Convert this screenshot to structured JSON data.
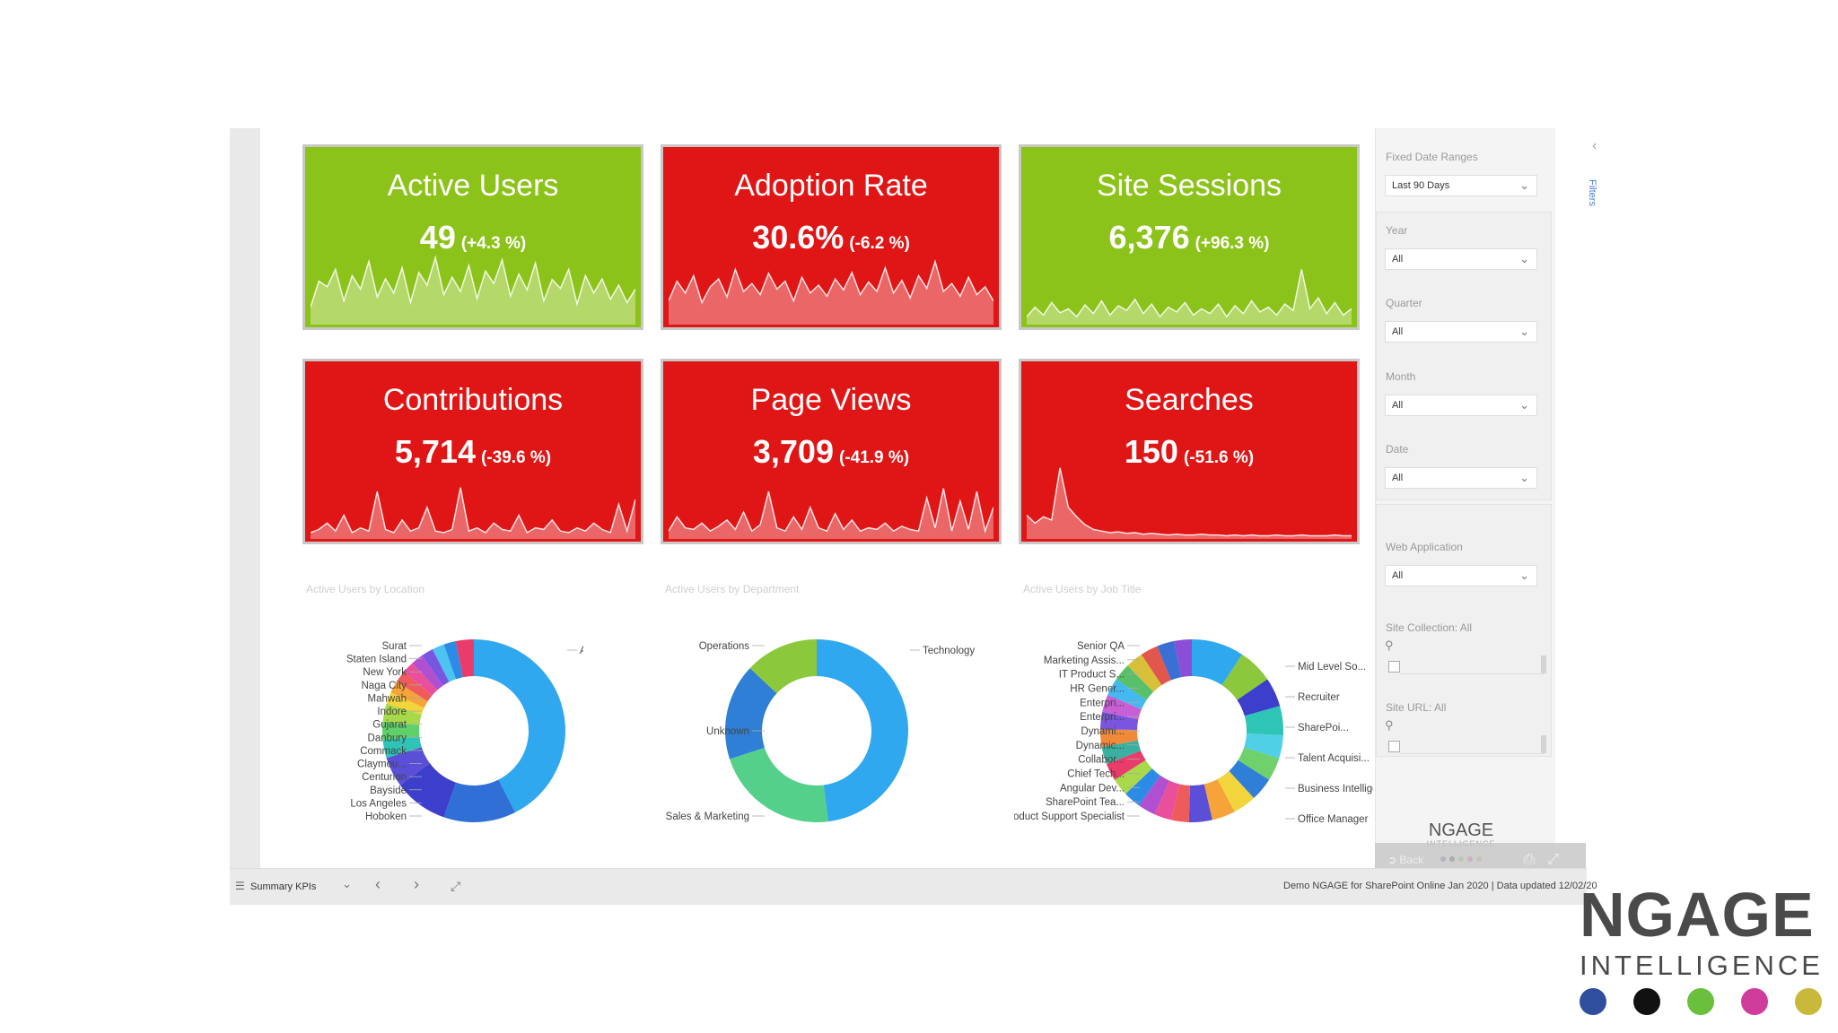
{
  "kpis": [
    {
      "title": "Active Users",
      "value": "49",
      "change": "(+4.3 %)",
      "color": "#8cc31a",
      "spark": [
        22,
        55,
        48,
        70,
        30,
        62,
        45,
        80,
        35,
        58,
        40,
        72,
        28,
        66,
        50,
        85,
        38,
        60,
        42,
        75,
        33,
        68,
        52,
        82,
        36,
        64,
        44,
        78,
        30,
        57,
        46,
        70,
        26,
        62,
        40,
        58,
        32,
        50,
        28,
        45
      ]
    },
    {
      "title": "Adoption Rate",
      "value": "30.6%",
      "change": "(-6.2 %)",
      "color": "#e01515",
      "spark": [
        30,
        55,
        40,
        62,
        28,
        48,
        58,
        35,
        70,
        42,
        52,
        38,
        65,
        45,
        55,
        30,
        60,
        40,
        50,
        36,
        58,
        44,
        66,
        38,
        54,
        42,
        72,
        40,
        56,
        34,
        62,
        46,
        80,
        42,
        52,
        36,
        60,
        38,
        48,
        30
      ]
    },
    {
      "title": "Site Sessions",
      "value": "6,376",
      "change": "(+96.3 %)",
      "color": "#8cc31a",
      "spark": [
        10,
        22,
        12,
        28,
        15,
        20,
        10,
        25,
        14,
        30,
        12,
        24,
        18,
        32,
        14,
        26,
        10,
        22,
        16,
        28,
        12,
        20,
        14,
        26,
        10,
        24,
        14,
        30,
        16,
        22,
        12,
        26,
        18,
        70,
        20,
        34,
        14,
        28,
        12,
        20
      ]
    },
    {
      "title": "Contributions",
      "value": "5,714",
      "change": "(-39.6 %)",
      "color": "#e01515",
      "spark": [
        8,
        12,
        20,
        10,
        30,
        8,
        14,
        10,
        60,
        12,
        8,
        24,
        10,
        14,
        40,
        10,
        8,
        12,
        65,
        10,
        14,
        8,
        20,
        12,
        10,
        30,
        8,
        14,
        12,
        24,
        10,
        8,
        14,
        10,
        20,
        12,
        8,
        44,
        10,
        50
      ]
    },
    {
      "title": "Page Views",
      "value": "3,709",
      "change": "(-41.9 %)",
      "color": "#e01515",
      "spark": [
        10,
        28,
        14,
        12,
        20,
        10,
        16,
        24,
        12,
        34,
        10,
        18,
        60,
        14,
        10,
        28,
        12,
        40,
        14,
        10,
        32,
        12,
        24,
        10,
        14,
        12,
        20,
        10,
        16,
        12,
        10,
        52,
        14,
        64,
        10,
        48,
        12,
        60,
        10,
        40
      ]
    },
    {
      "title": "Searches",
      "value": "150",
      "change": "(-51.6 %)",
      "color": "#e01515",
      "spark": [
        30,
        20,
        28,
        24,
        90,
        40,
        28,
        18,
        12,
        10,
        8,
        9,
        7,
        8,
        6,
        7,
        6,
        5,
        6,
        5,
        5,
        6,
        5,
        5,
        4,
        5,
        4,
        5,
        4,
        4,
        5,
        4,
        4,
        5,
        4,
        4,
        4,
        5,
        4,
        4
      ]
    }
  ],
  "charts": [
    {
      "title": "Active Users by Location",
      "labels_left": [
        "Surat",
        "Staten Island",
        "New York",
        "Naga City",
        "Mahwah",
        "Indore",
        "Gujarat",
        "Danbury",
        "Commack",
        "Claymou...",
        "Centurion",
        "Bayside",
        "Los Angeles",
        "Hoboken"
      ],
      "labels_right": [
        "Ahmedabad"
      ]
    },
    {
      "title": "Active Users by Department",
      "labels_left": [
        "Operations",
        "Unknown",
        "Sales & Marketing"
      ],
      "labels_right": [
        "Technology"
      ]
    },
    {
      "title": "Active Users by Job Title",
      "labels_left": [
        "Senior QA",
        "Marketing Assis...",
        "IT Product S...",
        "HR Gener...",
        "Enterpri...",
        "Enterpri...",
        "Dynami...",
        "Dynamic...",
        "Collabor...",
        "Chief Tech...",
        "Angular Dev...",
        "SharePoint Tea...",
        "Product Support Specialist"
      ],
      "labels_right": [
        "Mid Level So...",
        "Recruiter",
        "SharePoi...",
        "Talent Acquisi...",
        "Business Intelligen...",
        "Office Manager"
      ]
    }
  ],
  "filters": {
    "fixed_label": "Fixed Date Ranges",
    "fixed_value": "Last 90 Days",
    "year_label": "Year",
    "year_value": "All",
    "quarter_label": "Quarter",
    "quarter_value": "All",
    "month_label": "Month",
    "month_value": "All",
    "date_label": "Date",
    "date_value": "All",
    "webapp_label": "Web Application",
    "webapp_value": "All",
    "sitecoll_label": "Site Collection: All",
    "siteurl_label": "Site URL: All"
  },
  "rail": {
    "label": "Filters"
  },
  "bottom": {
    "page": "Summary KPIs",
    "footer": "Demo NGAGE for SharePoint Online Jan 2020 | Data updated 12/02/20"
  },
  "overlay": {
    "back": "Back"
  },
  "logo": {
    "name": "NGAGE",
    "sub": "INTELLIGENCE",
    "dots": [
      "#2f4f9e",
      "#111111",
      "#6abf3c",
      "#d03c9c",
      "#c9b93a"
    ]
  }
}
